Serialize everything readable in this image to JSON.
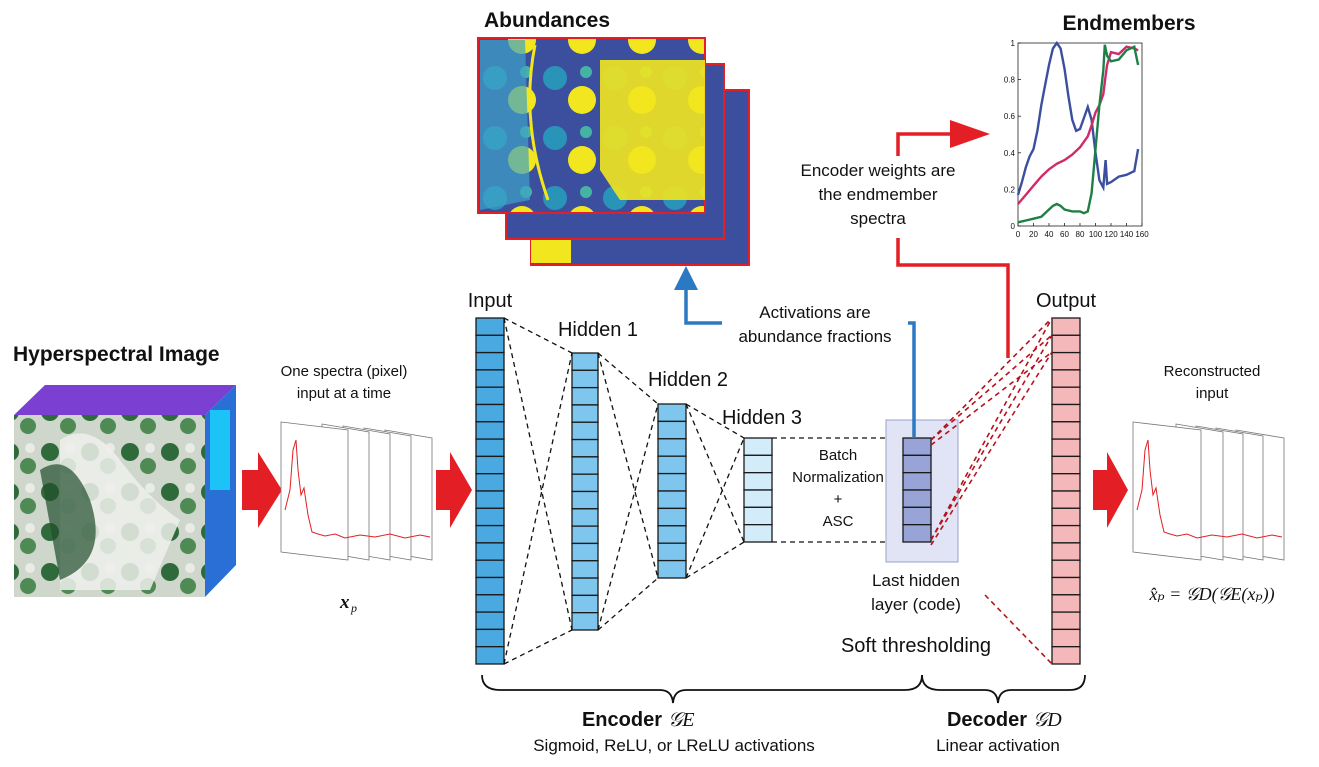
{
  "titles": {
    "hyperspectral": "Hyperspectral Image",
    "abundances": "Abundances",
    "endmembers": "Endmembers"
  },
  "input_note": {
    "line1": "One spectra (pixel)",
    "line2": "input at a time"
  },
  "symbols": {
    "xp": "x",
    "xp_sub": "p",
    "recon_formula": "x̂ₚ = 𝒢D(𝒢E(xₚ))"
  },
  "layers": {
    "input": "Input",
    "hidden1": "Hidden 1",
    "hidden2": "Hidden 2",
    "hidden3": "Hidden 3",
    "output": "Output"
  },
  "batchnorm": {
    "line1": "Batch",
    "line2": "Normalization",
    "line3": "+",
    "line4": "ASC"
  },
  "last_hidden": {
    "line1": "Last hidden",
    "line2": "layer (code)"
  },
  "soft_threshold": "Soft thresholding",
  "activations_note": {
    "line1": "Activations are",
    "line2": "abundance fractions"
  },
  "weights_note": {
    "line1": "Encoder weights are",
    "line2": "the endmember",
    "line3": "spectra"
  },
  "recon_note": {
    "line1": "Reconstructed",
    "line2": "input"
  },
  "encoder": {
    "label": "Encoder",
    "symbol": "𝒢E",
    "sub": "Sigmoid, ReLU, or LReLU activations"
  },
  "decoder": {
    "label": "Decoder",
    "symbol": "𝒢D",
    "sub": "Linear activation"
  },
  "colors": {
    "layer_blue": "#4aa9e0",
    "layer_mid": "#7fc6ee",
    "layer_light": "#d3ecfa",
    "code_purple": "#98a3d8",
    "output_pink": "#f4b8bb",
    "arrow_red": "#e31e24",
    "arrow_blue": "#2b79c2",
    "dashed_red": "#b5121b"
  },
  "chart_data": {
    "type": "line",
    "title": "Endmembers",
    "xlim": [
      0,
      160
    ],
    "ylim": [
      0,
      1
    ],
    "x_ticks": [
      "0",
      "20",
      "40",
      "60",
      "80",
      "100",
      "120",
      "140",
      "160"
    ],
    "y_ticks": [
      "0",
      "0.2",
      "0.4",
      "0.6",
      "0.8",
      "1"
    ],
    "series": [
      {
        "color": "#3b4f9e",
        "x": [
          0,
          5,
          10,
          15,
          20,
          25,
          30,
          35,
          40,
          45,
          50,
          55,
          60,
          65,
          70,
          75,
          80,
          85,
          90,
          95,
          100,
          105,
          110,
          113,
          115,
          120,
          130,
          140,
          150,
          155
        ],
        "y": [
          0.17,
          0.24,
          0.32,
          0.38,
          0.42,
          0.52,
          0.66,
          0.77,
          0.88,
          0.97,
          1.0,
          0.97,
          0.86,
          0.71,
          0.58,
          0.52,
          0.53,
          0.59,
          0.65,
          0.58,
          0.4,
          0.25,
          0.21,
          0.36,
          0.23,
          0.24,
          0.27,
          0.28,
          0.3,
          0.42
        ]
      },
      {
        "color": "#d12a68",
        "x": [
          0,
          10,
          20,
          30,
          40,
          50,
          60,
          70,
          80,
          90,
          95,
          100,
          105,
          110,
          113,
          115,
          120,
          130,
          140,
          150,
          155
        ],
        "y": [
          0.12,
          0.17,
          0.22,
          0.27,
          0.31,
          0.34,
          0.36,
          0.39,
          0.43,
          0.49,
          0.55,
          0.62,
          0.66,
          0.72,
          0.82,
          0.88,
          0.95,
          0.94,
          0.98,
          0.97,
          0.96
        ]
      },
      {
        "color": "#1f8046",
        "x": [
          0,
          10,
          20,
          30,
          40,
          45,
          50,
          55,
          60,
          70,
          80,
          85,
          90,
          95,
          100,
          105,
          110,
          112,
          115,
          120,
          130,
          140,
          150,
          155
        ],
        "y": [
          0.02,
          0.03,
          0.04,
          0.05,
          0.09,
          0.11,
          0.12,
          0.11,
          0.09,
          0.08,
          0.08,
          0.07,
          0.08,
          0.18,
          0.42,
          0.66,
          0.85,
          0.99,
          0.93,
          0.9,
          0.91,
          0.96,
          0.98,
          0.88
        ]
      }
    ]
  }
}
